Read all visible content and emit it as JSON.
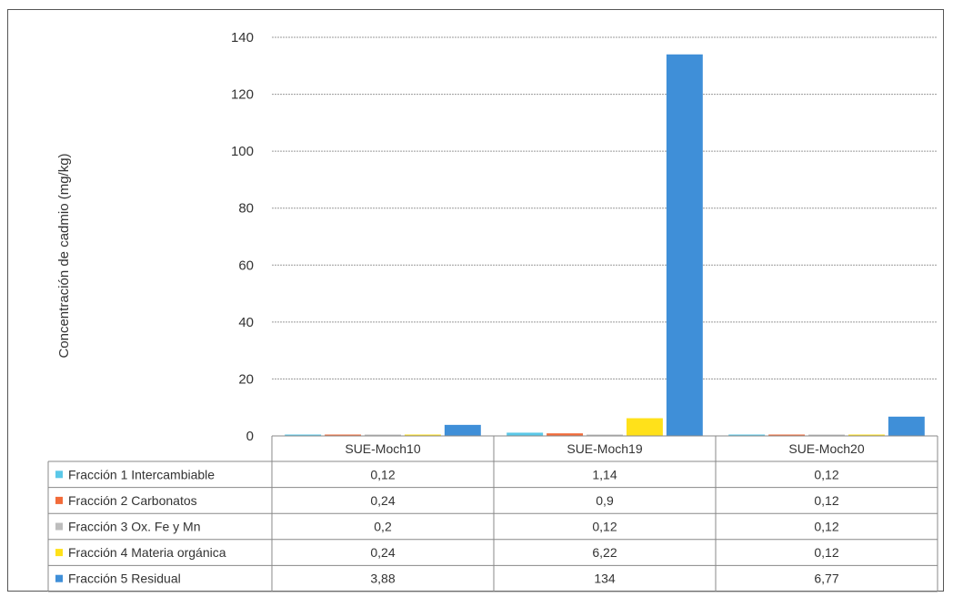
{
  "chart_data": {
    "type": "bar",
    "title": "",
    "xlabel": "",
    "ylabel": "Concentración de cadmio (mg/kg)",
    "ylim": [
      0,
      140
    ],
    "yticks": [
      0,
      20,
      40,
      60,
      80,
      100,
      120,
      140
    ],
    "grid": true,
    "legend_placement": "data-table-left",
    "categories": [
      "SUE-Moch10",
      "SUE-Moch19",
      "SUE-Moch20"
    ],
    "series": [
      {
        "name": "Fracción 1 Intercambiable",
        "color": "#5bc8e8",
        "values": [
          0.12,
          1.14,
          0.12
        ],
        "labels": [
          "0,12",
          "1,14",
          "0,12"
        ]
      },
      {
        "name": "Fracción 2 Carbonatos",
        "color": "#f26b3a",
        "values": [
          0.24,
          0.9,
          0.12
        ],
        "labels": [
          "0,24",
          "0,9",
          "0,12"
        ]
      },
      {
        "name": "Fracción 3 Ox. Fe y Mn",
        "color": "#bdbdbd",
        "values": [
          0.2,
          0.12,
          0.12
        ],
        "labels": [
          "0,2",
          "0,12",
          "0,12"
        ]
      },
      {
        "name": "Fracción 4 Materia orgánica",
        "color": "#ffe11a",
        "values": [
          0.24,
          6.22,
          0.12
        ],
        "labels": [
          "0,24",
          "6,22",
          "0,12"
        ]
      },
      {
        "name": "Fracción 5 Residual",
        "color": "#3f8fd8",
        "values": [
          3.88,
          134,
          6.77
        ],
        "labels": [
          "3,88",
          "134",
          "6,77"
        ]
      }
    ]
  }
}
